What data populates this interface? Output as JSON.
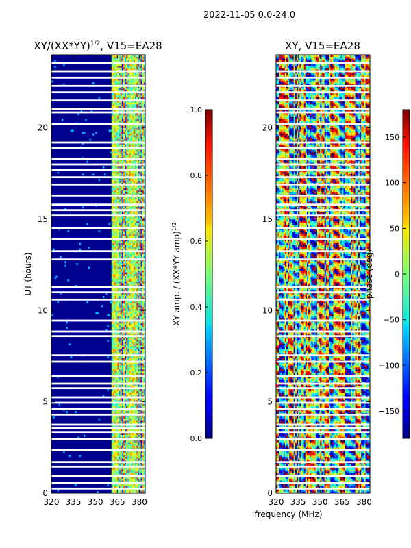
{
  "figure": {
    "suptitle": "2022-11-05 0.0-24.0"
  },
  "chart_data": [
    {
      "type": "heatmap",
      "title": "XY/(XX*YY)^{1/2}, V15=EA28",
      "title_main": "XY/(XX*YY)",
      "title_sup": "1/2",
      "title_rest": ", V15=EA28",
      "xlabel": "",
      "ylabel": "UT (hours)",
      "xlim": [
        320,
        384
      ],
      "ylim": [
        0,
        24
      ],
      "xticks": [
        320,
        335,
        350,
        365,
        380
      ],
      "yticks": [
        0,
        5,
        10,
        15,
        20
      ],
      "colorbar": {
        "label_main": "XY amp. / (XX*YY amp)",
        "label_sup": "1/2",
        "range": [
          0.0,
          1.0
        ],
        "ticks": [
          "0.0",
          "0.2",
          "0.4",
          "0.6",
          "0.8",
          "1.0"
        ]
      },
      "signal_band_mhz": [
        361,
        384
      ],
      "blank_rows_ut": [
        0.25,
        0.55,
        0.95,
        1.45,
        1.7,
        2.35,
        2.95,
        3.35,
        3.55,
        3.75,
        4.3,
        4.6,
        4.95,
        5.25,
        5.75,
        6.0,
        6.4,
        7.2,
        7.55,
        8.6,
        8.85,
        9.45,
        10.6,
        11.0,
        11.3,
        12.8,
        13.25,
        13.9,
        14.5,
        15.2,
        15.5,
        15.8,
        16.3,
        16.9,
        17.3,
        17.7,
        18.0,
        18.3,
        18.9,
        19.2,
        20.2,
        20.85,
        21.05,
        21.5,
        21.95,
        22.3,
        22.75,
        23.1,
        23.55
      ]
    },
    {
      "type": "heatmap",
      "title": "XY, V15=EA28",
      "xlabel": "frequency (MHz)",
      "ylabel": "",
      "xlim": [
        320,
        384
      ],
      "ylim": [
        0,
        24
      ],
      "xticks": [
        320,
        335,
        350,
        365,
        380
      ],
      "yticks": [
        0,
        5,
        10,
        15,
        20
      ],
      "colorbar": {
        "label": "phase (deg)",
        "range": [
          -180,
          180
        ],
        "ticks": [
          "−150",
          "−100",
          "−50",
          "0",
          "50",
          "100",
          "150"
        ],
        "tick_values": [
          -150,
          -100,
          -50,
          0,
          50,
          100,
          150
        ]
      },
      "blank_rows_ut": [
        0.25,
        0.55,
        0.95,
        1.45,
        1.7,
        2.35,
        2.95,
        3.35,
        3.55,
        3.75,
        4.3,
        4.6,
        4.95,
        5.25,
        5.75,
        6.0,
        6.4,
        7.2,
        7.55,
        8.6,
        8.85,
        9.45,
        10.6,
        11.0,
        11.3,
        12.8,
        13.25,
        13.9,
        14.5,
        15.2,
        15.5,
        15.8,
        16.3,
        16.9,
        17.3,
        17.7,
        18.0,
        18.3,
        18.9,
        19.2,
        20.2,
        20.85,
        21.05,
        21.5,
        21.95,
        22.3,
        22.75,
        23.1,
        23.55
      ]
    }
  ]
}
